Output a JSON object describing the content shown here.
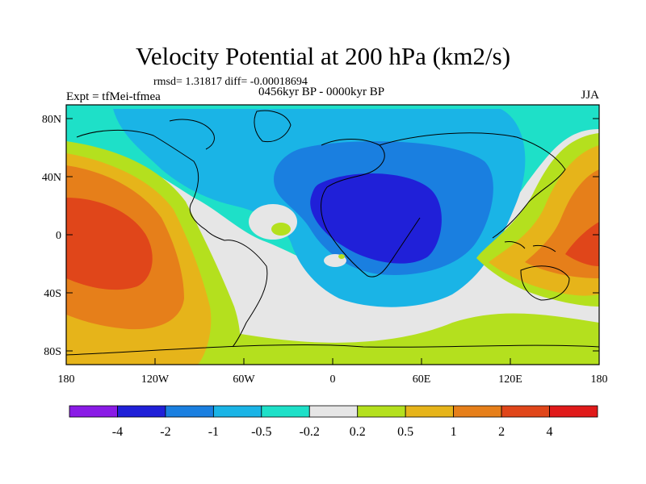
{
  "title": "Velocity Potential at 200 hPa (km2/s)",
  "stats": "rmsd= 1.31817 diff= -0.00018694",
  "left_label": "Expt = tfMei-tfmea",
  "center_label": "0456kyr BP - 0000kyr BP",
  "right_label": "JJA",
  "y_ticks": [
    "80N",
    "40N",
    "0",
    "40S",
    "80S"
  ],
  "x_ticks": [
    "180",
    "120W",
    "60W",
    "0",
    "60E",
    "120E",
    "180"
  ],
  "colorbar": {
    "labels": [
      "-4",
      "-2",
      "-1",
      "-0.5",
      "-0.2",
      "0.2",
      "0.5",
      "1",
      "2",
      "4"
    ],
    "colors": [
      "#8a1be6",
      "#2020d8",
      "#1a7fe0",
      "#1ab4e6",
      "#1ee0c8",
      "#e6e6e6",
      "#b4e01e",
      "#e6b41a",
      "#e67f1a",
      "#e0461a",
      "#e01a1a"
    ]
  }
}
